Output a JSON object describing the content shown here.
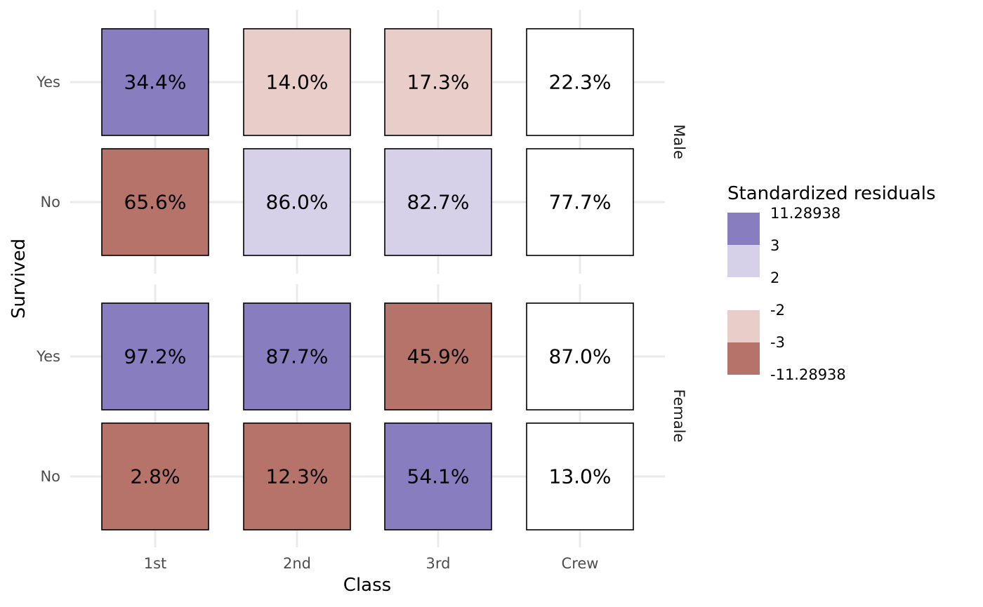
{
  "chart_data": {
    "type": "heatmap",
    "xlabel": "Class",
    "ylabel": "Survived",
    "x_categories": [
      "1st",
      "2nd",
      "3rd",
      "Crew"
    ],
    "y_categories": [
      "Yes",
      "No"
    ],
    "facets": [
      {
        "label": "Male",
        "cells": [
          {
            "class": "1st",
            "survived": "Yes",
            "label": "34.4%",
            "residual_band": ">3"
          },
          {
            "class": "2nd",
            "survived": "Yes",
            "label": "14.0%",
            "residual_band": "-3 to -2"
          },
          {
            "class": "3rd",
            "survived": "Yes",
            "label": "17.3%",
            "residual_band": "-3 to -2"
          },
          {
            "class": "Crew",
            "survived": "Yes",
            "label": "22.3%",
            "residual_band": "-2 to 2"
          },
          {
            "class": "1st",
            "survived": "No",
            "label": "65.6%",
            "residual_band": "<-3"
          },
          {
            "class": "2nd",
            "survived": "No",
            "label": "86.0%",
            "residual_band": "2 to 3"
          },
          {
            "class": "3rd",
            "survived": "No",
            "label": "82.7%",
            "residual_band": "2 to 3"
          },
          {
            "class": "Crew",
            "survived": "No",
            "label": "77.7%",
            "residual_band": "-2 to 2"
          }
        ]
      },
      {
        "label": "Female",
        "cells": [
          {
            "class": "1st",
            "survived": "Yes",
            "label": "97.2%",
            "residual_band": ">3"
          },
          {
            "class": "2nd",
            "survived": "Yes",
            "label": "87.7%",
            "residual_band": ">3"
          },
          {
            "class": "3rd",
            "survived": "Yes",
            "label": "45.9%",
            "residual_band": "<-3"
          },
          {
            "class": "Crew",
            "survived": "Yes",
            "label": "87.0%",
            "residual_band": "-2 to 2"
          },
          {
            "class": "1st",
            "survived": "No",
            "label": "2.8%",
            "residual_band": "<-3"
          },
          {
            "class": "2nd",
            "survived": "No",
            "label": "12.3%",
            "residual_band": "<-3"
          },
          {
            "class": "3rd",
            "survived": "No",
            "label": "54.1%",
            "residual_band": ">3"
          },
          {
            "class": "Crew",
            "survived": "No",
            "label": "13.0%",
            "residual_band": "-2 to 2"
          }
        ]
      }
    ],
    "legend": {
      "title": "Standardized residuals",
      "position": "right",
      "bands": [
        {
          "band": ">3",
          "color": "#877dbf"
        },
        {
          "band": "2 to 3",
          "color": "#d6d1e8"
        },
        {
          "band": "-2 to 2",
          "color": "#ffffff"
        },
        {
          "band": "-3 to -2",
          "color": "#e8cdc9"
        },
        {
          "band": "<-3",
          "color": "#b5736a"
        }
      ],
      "labels": [
        "11.28938",
        "3",
        "2",
        "-2",
        "-3",
        "-11.28938"
      ]
    },
    "grid": true
  }
}
